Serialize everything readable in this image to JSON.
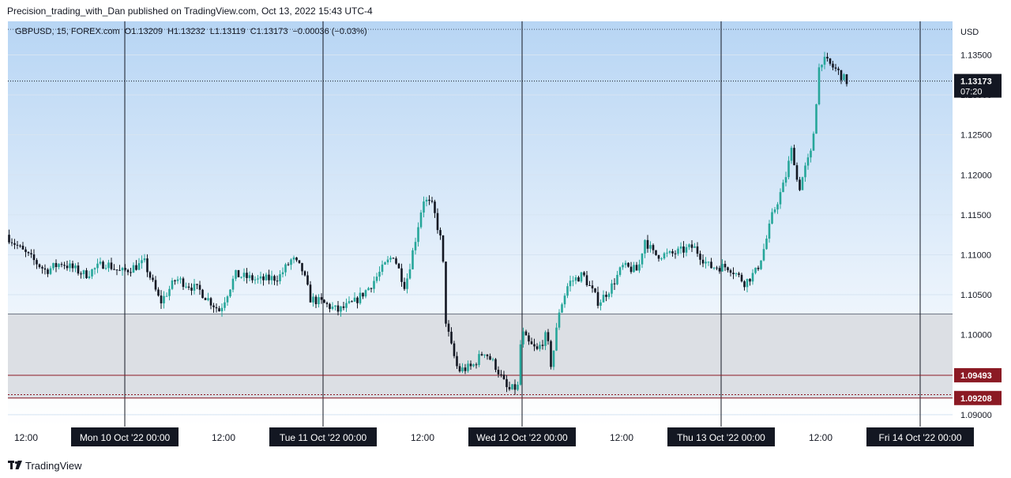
{
  "header": {
    "publisher_line": "Precision_trading_with_Dan published on TradingView.com, Oct 13, 2022 15:43 UTC-4"
  },
  "legend": {
    "symbol": "GBPUSD, 15, FOREX.com",
    "open_label": "O",
    "open": "1.13209",
    "high_label": "H",
    "high": "1.13232",
    "low_label": "L",
    "low": "1.13119",
    "close_label": "C",
    "close": "1.13173",
    "change": "−0.00036 (−0.03%)"
  },
  "price_axis": {
    "currency": "USD",
    "ticks": [
      "1.13500",
      "1.13000",
      "1.12500",
      "1.12000",
      "1.11500",
      "1.11000",
      "1.10500",
      "1.10000",
      "1.09500",
      "1.09000"
    ],
    "last_price_label": "1.13173",
    "countdown": "07:20",
    "level_labels": [
      "1.09493",
      "1.09208"
    ]
  },
  "time_axis": {
    "labels": [
      {
        "text": "12:00",
        "highlight": false
      },
      {
        "text": "Mon 10 Oct '22   00:00",
        "highlight": true
      },
      {
        "text": "12:00",
        "highlight": false
      },
      {
        "text": "Tue 11 Oct '22   00:00",
        "highlight": true
      },
      {
        "text": "12:00",
        "highlight": false
      },
      {
        "text": "Wed 12 Oct '22   00:00",
        "highlight": true
      },
      {
        "text": "12:00",
        "highlight": false
      },
      {
        "text": "Thu 13 Oct '22   00:00",
        "highlight": true
      },
      {
        "text": "12:00",
        "highlight": false
      },
      {
        "text": "Fri 14 Oct '22   00:00",
        "highlight": true
      }
    ]
  },
  "chart_data": {
    "type": "candlestick",
    "symbol": "GBPUSD",
    "timeframe": "15",
    "ylim": [
      1.0885,
      1.1392
    ],
    "last_price": 1.13173,
    "grey_zone": [
      1.092,
      1.1026
    ],
    "levels": [
      1.09493,
      1.09208,
      1.0925
    ],
    "top_level": 1.1382,
    "x": [
      "Sun 9 Oct 12:00",
      "Mon 10 Oct 00:00",
      "Mon 10 Oct 12:00",
      "Tue 11 Oct 00:00",
      "Tue 11 Oct 12:00",
      "Wed 12 Oct 00:00",
      "Wed 12 Oct 12:00",
      "Thu 13 Oct 00:00",
      "Thu 13 Oct 12:00",
      "Thu 13 Oct 15:43"
    ],
    "close": [
      1.1125,
      1.108,
      1.1075,
      1.1048,
      1.117,
      1.0925,
      1.1065,
      1.108,
      1.1345,
      1.1317
    ],
    "colors": {
      "up": "#26a69a",
      "down": "#131722",
      "zone": "#dcdfe4",
      "level": "#8b1a24",
      "session_line": "#131722"
    }
  },
  "branding": {
    "logo_icon": "tradingview-logo-icon",
    "name": "TradingView"
  }
}
